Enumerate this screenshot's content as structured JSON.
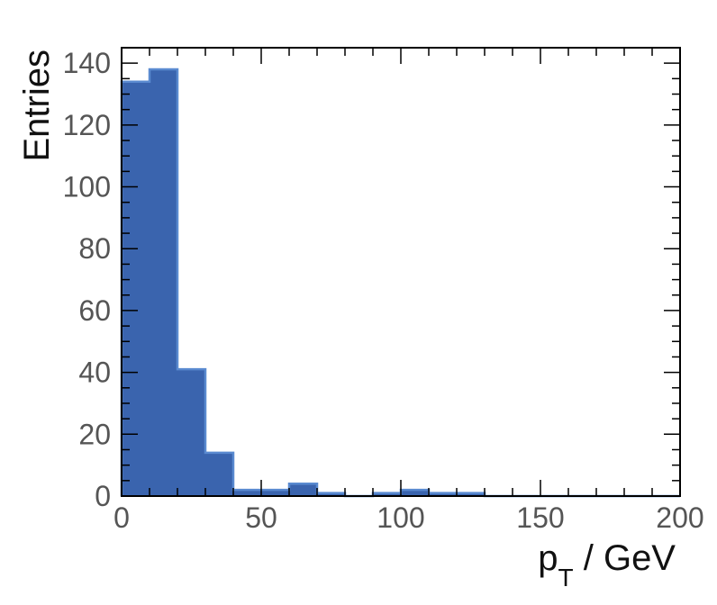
{
  "chart_data": {
    "type": "bar",
    "histogram": true,
    "bin_edges": [
      0,
      10,
      20,
      30,
      40,
      50,
      60,
      70,
      80,
      90,
      100,
      110,
      120,
      130,
      140,
      150,
      160,
      170,
      180,
      190,
      200
    ],
    "values": [
      134,
      138,
      41,
      14,
      2,
      2,
      4,
      1,
      0,
      1,
      2,
      1,
      1,
      0,
      0,
      0,
      0,
      0,
      0,
      0
    ],
    "xlabel": {
      "main": "p",
      "sub": "T",
      "unit": " / GeV"
    },
    "ylabel": "Entries",
    "xlim": [
      0,
      200
    ],
    "ylim": [
      0,
      145
    ],
    "xticks": [
      0,
      50,
      100,
      150,
      200
    ],
    "xtick_labels": [
      "0",
      "50",
      "100",
      "150",
      "200"
    ],
    "yticks": [
      0,
      20,
      40,
      60,
      80,
      100,
      120,
      140
    ],
    "ytick_labels": [
      "0",
      "20",
      "40",
      "60",
      "80",
      "100",
      "120",
      "140"
    ],
    "grid": false,
    "fill_color": "#3a64ae",
    "line_color": "#5a8ad0"
  }
}
